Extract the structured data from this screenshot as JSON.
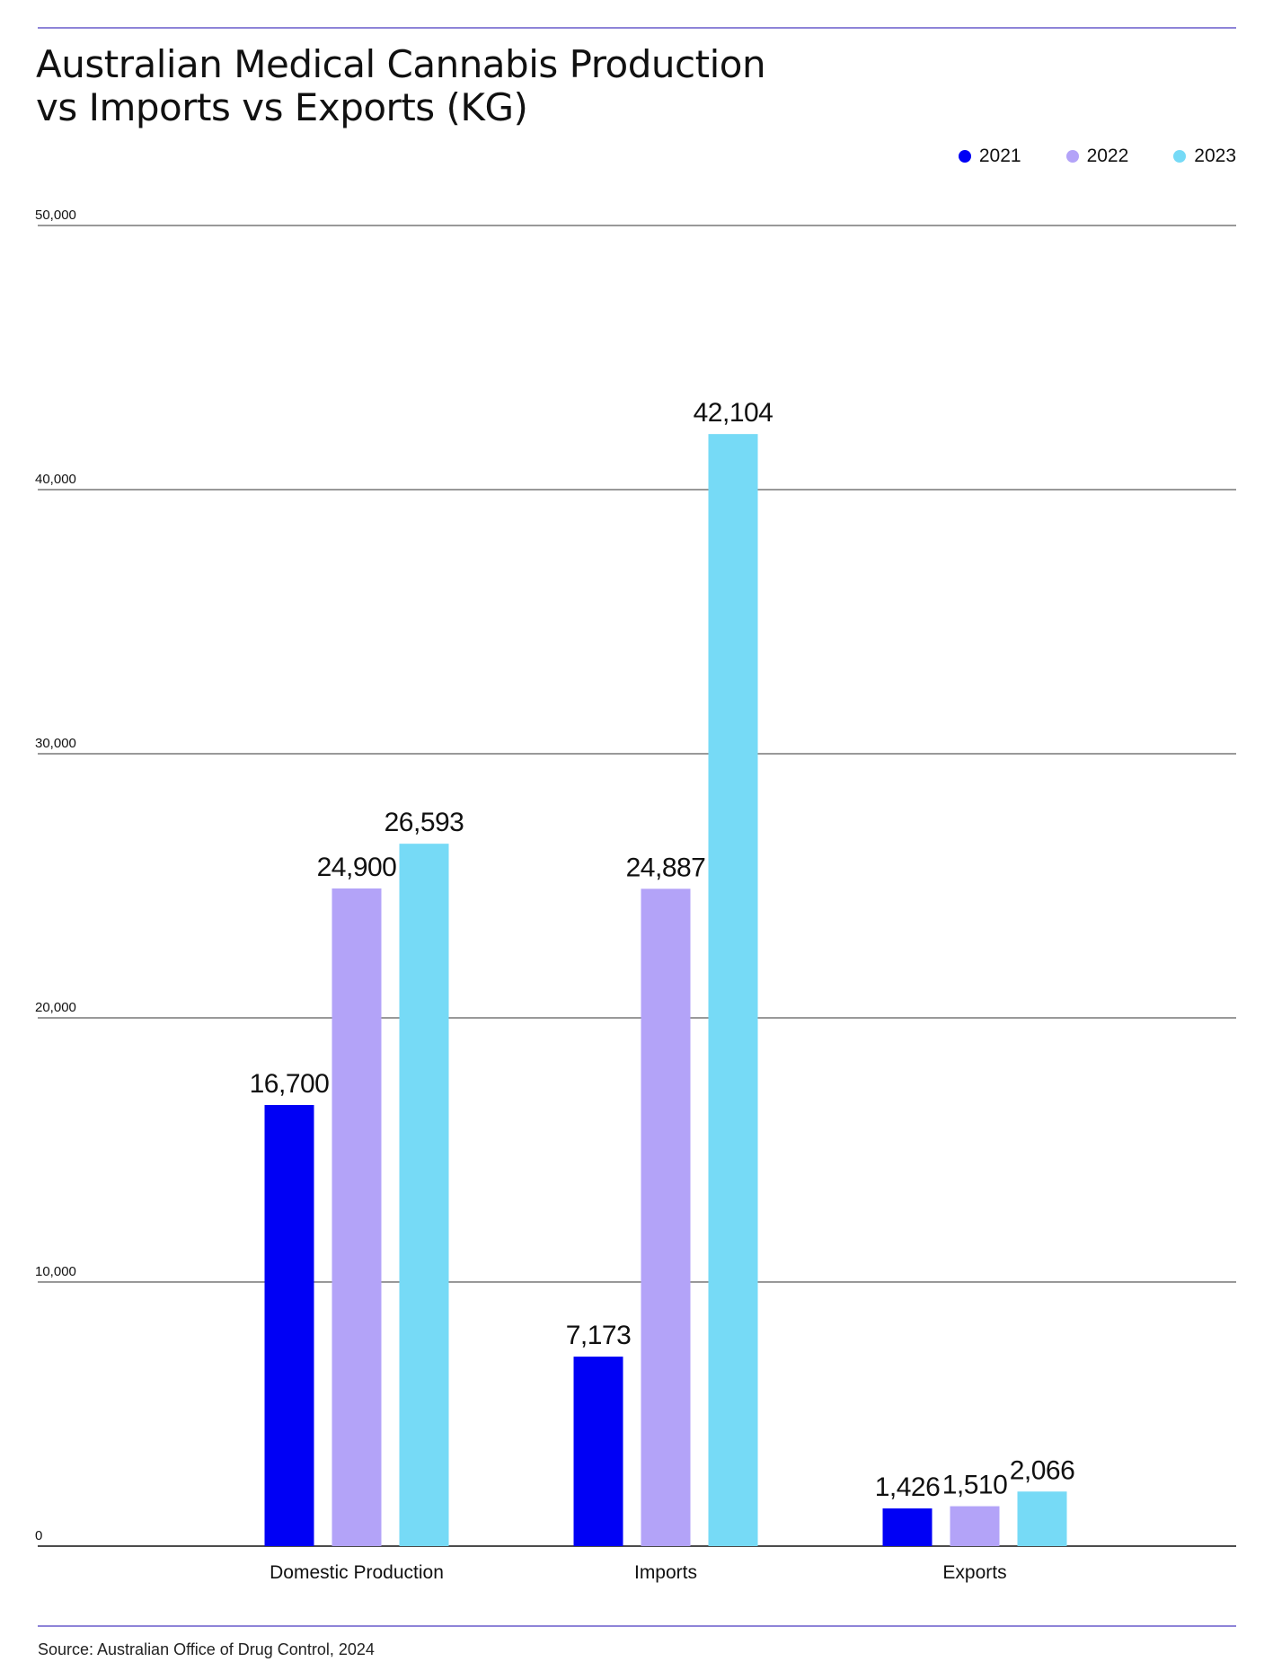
{
  "title_lines": [
    "Australian Medical Cannabis Production",
    "vs Imports vs Exports (KG)"
  ],
  "source": "Source: Australian Office of Drug Control, 2024",
  "legend": [
    {
      "label": "2021",
      "color": "#0000f5"
    },
    {
      "label": "2022",
      "color": "#b3a3f8"
    },
    {
      "label": "2023",
      "color": "#76daf6"
    }
  ],
  "chart_data": {
    "type": "bar",
    "title": "Australian Medical Cannabis Production vs Imports vs Exports (KG)",
    "categories": [
      "Domestic Production",
      "Imports",
      "Exports"
    ],
    "series": [
      {
        "name": "2021",
        "color": "#0000f5",
        "values": [
          16700,
          7173,
          1426
        ],
        "labels": [
          "16,700",
          "7,173",
          "1,426"
        ]
      },
      {
        "name": "2022",
        "color": "#b3a3f8",
        "values": [
          24900,
          24887,
          1510
        ],
        "labels": [
          "24,900",
          "24,887",
          "1,510"
        ]
      },
      {
        "name": "2023",
        "color": "#76daf6",
        "values": [
          26593,
          42104,
          2066
        ],
        "labels": [
          "26,593",
          "42,104",
          "2,066"
        ]
      }
    ],
    "yticks": [
      0,
      10000,
      20000,
      30000,
      40000,
      50000
    ],
    "ytick_labels": [
      "0",
      "10,000",
      "20,000",
      "30,000",
      "40,000",
      "50,000"
    ],
    "ylim": [
      0,
      50000
    ],
    "xlabel": "",
    "ylabel": "",
    "grid": true,
    "legend_position": "top-right"
  }
}
